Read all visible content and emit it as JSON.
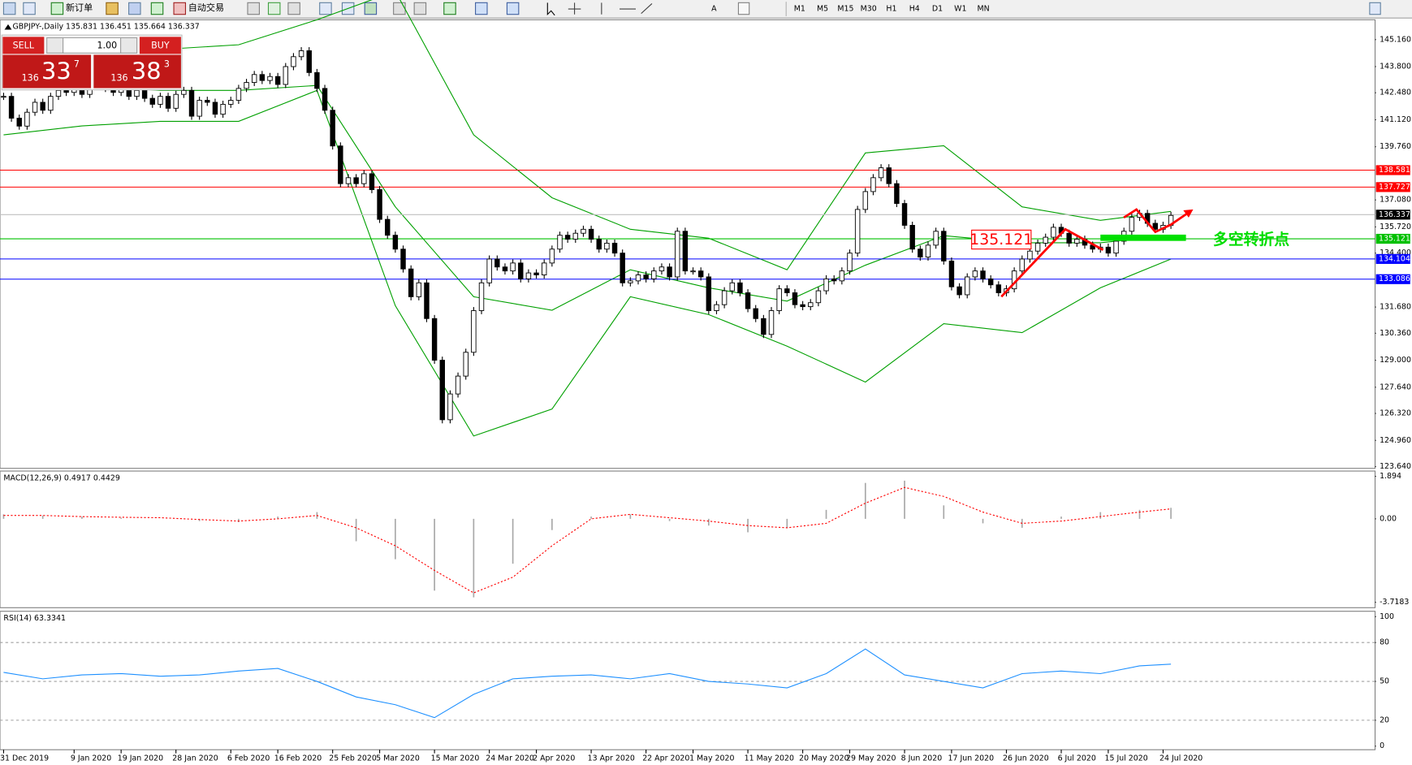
{
  "toolbar": {
    "new_order": "新订单",
    "auto_trading": "自动交易",
    "timeframes": [
      "M1",
      "M5",
      "M15",
      "M30",
      "H1",
      "H4",
      "D1",
      "W1",
      "MN"
    ]
  },
  "order_panel": {
    "sell": "SELL",
    "buy": "BUY",
    "lots": "1.00",
    "bid": {
      "big": "136",
      "main": "33",
      "pip": "7"
    },
    "ask": {
      "big": "136",
      "main": "38",
      "pip": "3"
    }
  },
  "chart_data": {
    "type": "candlestick",
    "title": "GBPJPY-,Daily 135.831 136.451 135.664 136.337",
    "close": [
      142.3,
      141.2,
      140.8,
      141.5,
      142.0,
      141.6,
      142.3,
      142.6,
      142.5,
      142.8,
      142.4,
      142.9,
      143.1,
      142.7,
      142.5,
      142.8,
      142.3,
      142.6,
      142.2,
      141.9,
      142.3,
      141.7,
      142.4,
      142.6,
      141.3,
      142.1,
      142.0,
      141.4,
      141.9,
      142.1,
      142.7,
      143.0,
      143.4,
      143.1,
      143.3,
      142.9,
      143.8,
      144.3,
      144.6,
      143.5,
      142.7,
      141.6,
      139.8,
      137.9,
      138.2,
      137.9,
      138.4,
      137.6,
      136.1,
      135.3,
      134.6,
      133.6,
      132.2,
      132.9,
      131.1,
      129.0,
      126.0,
      127.3,
      128.2,
      129.4,
      131.5,
      132.9,
      134.1,
      133.7,
      133.5,
      133.9,
      133.1,
      133.4,
      133.3,
      133.9,
      134.6,
      135.3,
      135.1,
      135.4,
      135.6,
      135.1,
      134.6,
      134.9,
      134.4,
      132.9,
      133.0,
      133.3,
      133.1,
      133.5,
      133.7,
      133.2,
      135.5,
      133.5,
      133.5,
      133.2,
      131.5,
      131.8,
      132.5,
      132.9,
      132.4,
      131.6,
      131.1,
      130.3,
      131.5,
      132.6,
      132.4,
      131.8,
      131.7,
      131.9,
      132.5,
      133.1,
      133.0,
      133.5,
      134.4,
      136.6,
      137.5,
      138.2,
      138.7,
      137.9,
      136.9,
      135.8,
      134.6,
      134.2,
      134.8,
      135.5,
      134.0,
      132.7,
      132.3,
      133.2,
      133.5,
      133.1,
      132.8,
      132.4,
      132.6,
      133.5,
      134.1,
      134.5,
      134.9,
      135.2,
      135.7,
      135.4,
      134.9,
      135.1,
      134.8,
      134.6,
      134.7,
      134.4,
      135.0,
      135.5,
      136.2,
      136.4,
      135.9,
      135.6,
      135.8,
      136.3
    ],
    "date_ticks": [
      {
        "value": 0,
        "label": "31 Dec 2019"
      },
      {
        "value": 9,
        "label": "9 Jan 2020"
      },
      {
        "value": 15,
        "label": "19 Jan 2020"
      },
      {
        "value": 22,
        "label": "28 Jan 2020"
      },
      {
        "value": 29,
        "label": "6 Feb 2020"
      },
      {
        "value": 35,
        "label": "16 Feb 2020"
      },
      {
        "value": 42,
        "label": "25 Feb 2020"
      },
      {
        "value": 48,
        "label": "5 Mar 2020"
      },
      {
        "value": 55,
        "label": "15 Mar 2020"
      },
      {
        "value": 62,
        "label": "24 Mar 2020"
      },
      {
        "value": 68,
        "label": "2 Apr 2020"
      },
      {
        "value": 75,
        "label": "13 Apr 2020"
      },
      {
        "value": 82,
        "label": "22 Apr 2020"
      },
      {
        "value": 88,
        "label": "1 May 2020"
      },
      {
        "value": 95,
        "label": "11 May 2020"
      },
      {
        "value": 102,
        "label": "20 May 2020"
      },
      {
        "value": 108,
        "label": "29 May 2020"
      },
      {
        "value": 115,
        "label": "8 Jun 2020"
      },
      {
        "value": 121,
        "label": "17 Jun 2020"
      },
      {
        "value": 128,
        "label": "26 Jun 2020"
      },
      {
        "value": 135,
        "label": "6 Jul 2020"
      },
      {
        "value": 141,
        "label": "15 Jul 2020"
      },
      {
        "value": 148,
        "label": "24 Jul 2020"
      }
    ],
    "ylim": [
      123.55,
      146.16
    ],
    "yticks": [
      {
        "value": 145.16,
        "label": "145.160"
      },
      {
        "value": 143.8,
        "label": "143.800"
      },
      {
        "value": 142.48,
        "label": "142.480"
      },
      {
        "value": 141.12,
        "label": "141.120"
      },
      {
        "value": 139.76,
        "label": "139.760"
      },
      {
        "value": 137.08,
        "label": "137.080"
      },
      {
        "value": 135.72,
        "label": "135.720"
      },
      {
        "value": 134.4,
        "label": "134.400"
      },
      {
        "value": 131.68,
        "label": "131.680"
      },
      {
        "value": 130.36,
        "label": "130.360"
      },
      {
        "value": 129,
        "label": "129.000"
      },
      {
        "value": 127.64,
        "label": "127.640"
      },
      {
        "value": 126.32,
        "label": "126.320"
      },
      {
        "value": 124.96,
        "label": "124.960"
      },
      {
        "value": 123.64,
        "label": "123.640"
      }
    ],
    "levels": [
      {
        "value": 138.581,
        "color": "#ff0000"
      },
      {
        "value": 137.727,
        "color": "#ff0000"
      },
      {
        "value": 136.337,
        "color": "#c0c0c0"
      },
      {
        "value": 135.121,
        "color": "#00c000"
      },
      {
        "value": 134.104,
        "color": "#0000ff"
      },
      {
        "value": 133.086,
        "color": "#0000ff"
      }
    ],
    "bands": {
      "color": "#00a000",
      "x": [
        0,
        10,
        20,
        30,
        40,
        50,
        60,
        70,
        80,
        90,
        100,
        110,
        120,
        130,
        140,
        149
      ],
      "upper": [
        145.3,
        145.1,
        144.66,
        144.9,
        146.16,
        147.6,
        140.36,
        137.19,
        135.6,
        135.15,
        133.56,
        139.45,
        139.81,
        136.73,
        136.05,
        136.5
      ],
      "middle": [
        142.85,
        142.85,
        142.6,
        142.6,
        142.85,
        136.73,
        132.2,
        131.52,
        133.56,
        132.65,
        131.98,
        133.79,
        135.28,
        134.92,
        134.92,
        135.28
      ],
      "lower": [
        140.36,
        140.81,
        141.04,
        141.04,
        142.6,
        131.75,
        125.18,
        126.54,
        132.2,
        131.3,
        129.71,
        127.9,
        130.84,
        130.39,
        132.65,
        134.1
      ]
    },
    "annotations": {
      "level_box": "135.121",
      "note": "多空转折点"
    },
    "macd": {
      "label": "MACD(12,26,9) 0.4917 0.4429",
      "ylim": [
        -3.96,
        2.13
      ],
      "yticks": [
        1.894,
        {
          "value": 0,
          "label": "0.00"
        },
        -3.7183
      ],
      "x": [
        0,
        5,
        10,
        15,
        20,
        25,
        30,
        35,
        40,
        45,
        50,
        55,
        60,
        65,
        70,
        75,
        80,
        85,
        90,
        95,
        100,
        105,
        110,
        115,
        120,
        125,
        130,
        135,
        140,
        145,
        149
      ],
      "histogram": [
        0.2,
        0.15,
        0.1,
        0.05,
        0.0,
        -0.1,
        -0.15,
        0.1,
        0.3,
        -1.0,
        -1.8,
        -3.2,
        -3.5,
        -2.0,
        -0.5,
        0.1,
        0.2,
        -0.1,
        -0.3,
        -0.6,
        -0.4,
        0.4,
        1.6,
        1.7,
        0.6,
        -0.2,
        -0.4,
        0.1,
        0.3,
        0.4,
        0.4917
      ],
      "signal": [
        0.15,
        0.15,
        0.1,
        0.07,
        0.05,
        -0.03,
        -0.1,
        0.0,
        0.15,
        -0.4,
        -1.2,
        -2.3,
        -3.3,
        -2.6,
        -1.2,
        0.0,
        0.2,
        0.05,
        -0.1,
        -0.3,
        -0.4,
        -0.2,
        0.7,
        1.4,
        1.0,
        0.3,
        -0.2,
        -0.1,
        0.1,
        0.3,
        0.4429
      ]
    },
    "rsi": {
      "label": "RSI(14) 63.3341",
      "color": "#1e90ff",
      "ylim": [
        0,
        100
      ],
      "yticks": [
        100,
        80,
        50,
        20,
        0
      ],
      "levels": [
        80,
        50,
        20
      ],
      "x": [
        0,
        5,
        10,
        15,
        20,
        25,
        30,
        35,
        40,
        45,
        50,
        55,
        60,
        65,
        70,
        75,
        80,
        85,
        90,
        95,
        100,
        105,
        110,
        115,
        120,
        125,
        130,
        135,
        140,
        145,
        149
      ],
      "values": [
        57,
        52,
        55,
        56,
        54,
        55,
        58,
        60,
        50,
        38,
        32,
        22,
        40,
        52,
        54,
        55,
        52,
        56,
        50,
        48,
        45,
        56,
        75,
        55,
        50,
        45,
        56,
        58,
        56,
        62,
        63.3341
      ]
    }
  }
}
